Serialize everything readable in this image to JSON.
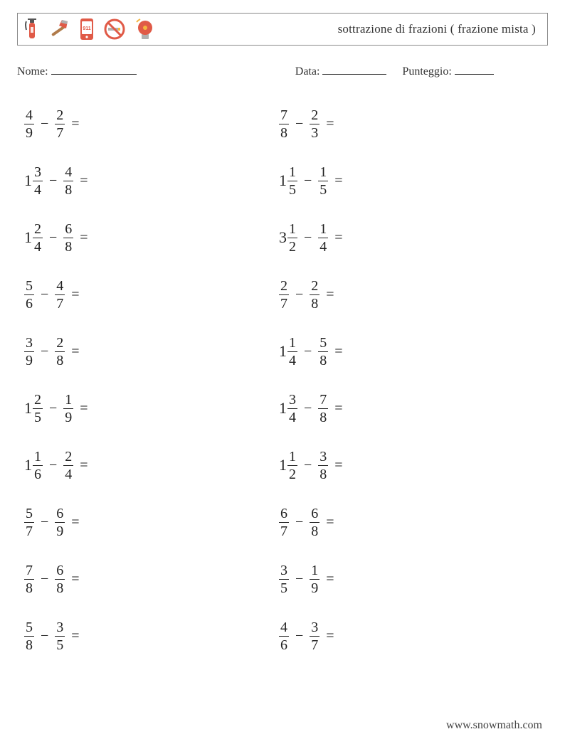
{
  "header": {
    "title": "sottrazione di frazioni ( frazione mista )",
    "icons": [
      "fire-extinguisher",
      "axe",
      "phone-911",
      "no-smoking",
      "alarm-bell"
    ]
  },
  "meta": {
    "name_label": "Nome:",
    "date_label": "Data:",
    "score_label": "Punteggio:"
  },
  "colors": {
    "border": "#888888",
    "text": "#222222",
    "red": "#e05a47",
    "orange": "#f28b3b",
    "yellow": "#f4b63f",
    "brown": "#b07b4a",
    "gray": "#b0b0b0"
  },
  "problems": {
    "left": [
      {
        "a": {
          "num": 4,
          "den": 9
        },
        "b": {
          "num": 2,
          "den": 7
        }
      },
      {
        "a": {
          "whole": 1,
          "num": 3,
          "den": 4
        },
        "b": {
          "num": 4,
          "den": 8
        }
      },
      {
        "a": {
          "whole": 1,
          "num": 2,
          "den": 4
        },
        "b": {
          "num": 6,
          "den": 8
        }
      },
      {
        "a": {
          "num": 5,
          "den": 6
        },
        "b": {
          "num": 4,
          "den": 7
        }
      },
      {
        "a": {
          "num": 3,
          "den": 9
        },
        "b": {
          "num": 2,
          "den": 8
        }
      },
      {
        "a": {
          "whole": 1,
          "num": 2,
          "den": 5
        },
        "b": {
          "num": 1,
          "den": 9
        }
      },
      {
        "a": {
          "whole": 1,
          "num": 1,
          "den": 6
        },
        "b": {
          "num": 2,
          "den": 4
        }
      },
      {
        "a": {
          "num": 5,
          "den": 7
        },
        "b": {
          "num": 6,
          "den": 9
        }
      },
      {
        "a": {
          "num": 7,
          "den": 8
        },
        "b": {
          "num": 6,
          "den": 8
        }
      },
      {
        "a": {
          "num": 5,
          "den": 8
        },
        "b": {
          "num": 3,
          "den": 5
        }
      }
    ],
    "right": [
      {
        "a": {
          "num": 7,
          "den": 8
        },
        "b": {
          "num": 2,
          "den": 3
        }
      },
      {
        "a": {
          "whole": 1,
          "num": 1,
          "den": 5
        },
        "b": {
          "num": 1,
          "den": 5
        }
      },
      {
        "a": {
          "whole": 3,
          "num": 1,
          "den": 2
        },
        "b": {
          "num": 1,
          "den": 4
        }
      },
      {
        "a": {
          "num": 2,
          "den": 7
        },
        "b": {
          "num": 2,
          "den": 8
        }
      },
      {
        "a": {
          "whole": 1,
          "num": 1,
          "den": 4
        },
        "b": {
          "num": 5,
          "den": 8
        }
      },
      {
        "a": {
          "whole": 1,
          "num": 3,
          "den": 4
        },
        "b": {
          "num": 7,
          "den": 8
        }
      },
      {
        "a": {
          "whole": 1,
          "num": 1,
          "den": 2
        },
        "b": {
          "num": 3,
          "den": 8
        }
      },
      {
        "a": {
          "num": 6,
          "den": 7
        },
        "b": {
          "num": 6,
          "den": 8
        }
      },
      {
        "a": {
          "num": 3,
          "den": 5
        },
        "b": {
          "num": 1,
          "den": 9
        }
      },
      {
        "a": {
          "num": 4,
          "den": 6
        },
        "b": {
          "num": 3,
          "den": 7
        }
      }
    ]
  },
  "symbols": {
    "minus": "−",
    "equals": "="
  },
  "footer": {
    "url": "www.snowmath.com"
  }
}
